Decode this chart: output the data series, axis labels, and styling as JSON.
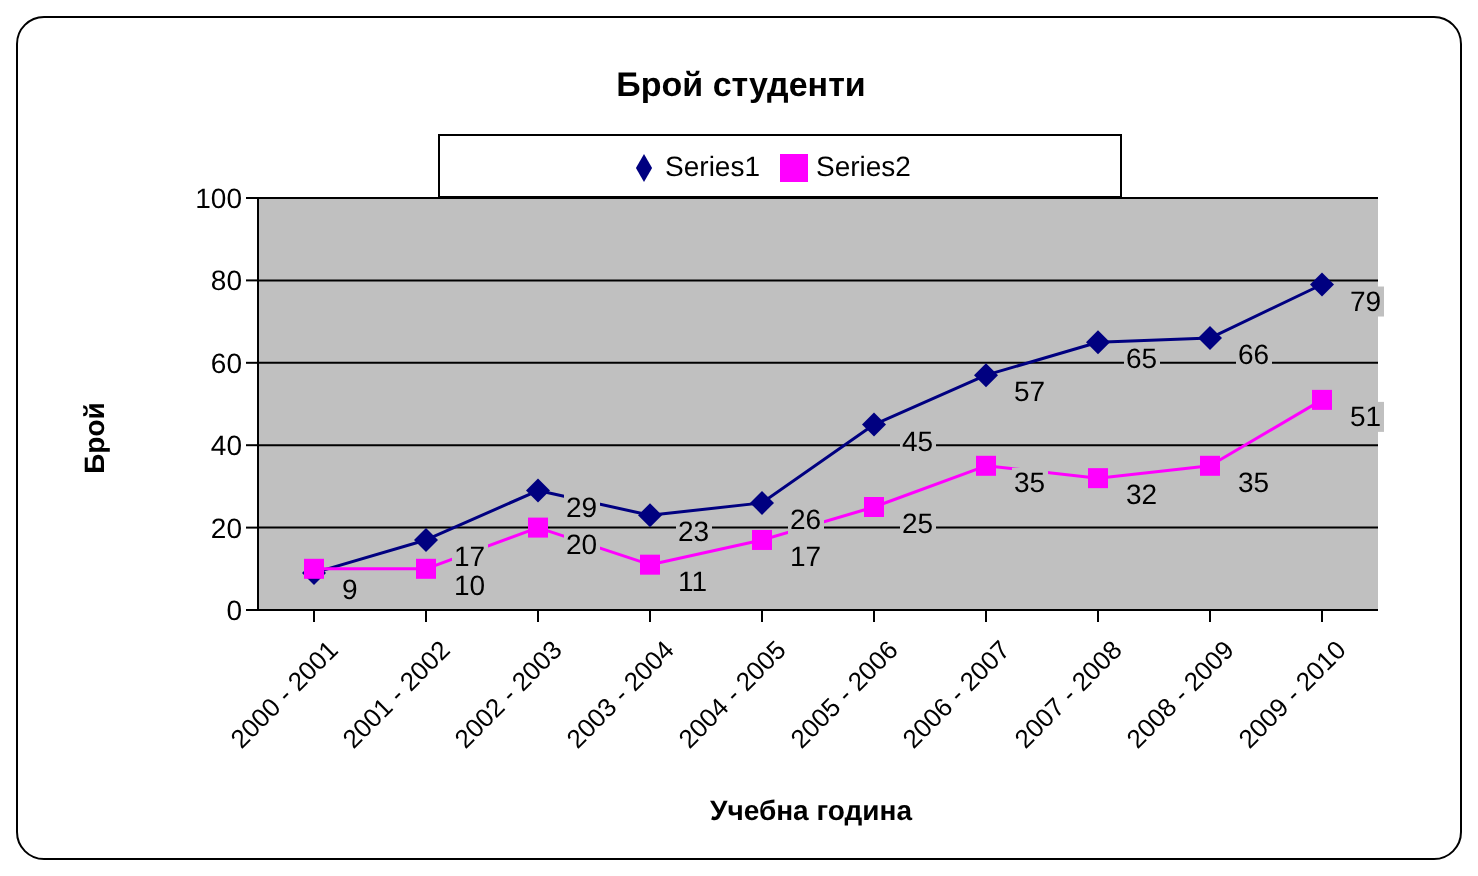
{
  "chart_data": {
    "type": "line",
    "title": "Брой студенти",
    "xlabel": "Учебна година",
    "ylabel": "Брой",
    "categories": [
      "2000 - 2001",
      "2001 - 2002",
      "2002 - 2003",
      "2003 - 2004",
      "2004 - 2005",
      "2005 - 2006",
      "2006 - 2007",
      "2007 - 2008",
      "2008 - 2009",
      "2009 - 2010"
    ],
    "series": [
      {
        "name": "Series1",
        "color": "#000080",
        "marker": "diamond",
        "values": [
          9,
          17,
          29,
          23,
          26,
          45,
          57,
          65,
          66,
          79
        ],
        "value_labels": [
          "9",
          "17",
          "29",
          "23",
          "26",
          "45",
          "57",
          "65",
          "66",
          "79"
        ]
      },
      {
        "name": "Series2",
        "color": "#ff00ff",
        "marker": "square",
        "values": [
          10,
          10,
          20,
          11,
          17,
          25,
          35,
          32,
          35,
          51
        ],
        "value_labels": [
          null,
          "10",
          "20",
          "11",
          "17",
          "25",
          "35",
          "32",
          "35",
          "51"
        ]
      }
    ],
    "ylim": [
      0,
      100
    ],
    "yticks": [
      0,
      20,
      40,
      60,
      80,
      100
    ],
    "grid": "y",
    "legend": "top"
  }
}
